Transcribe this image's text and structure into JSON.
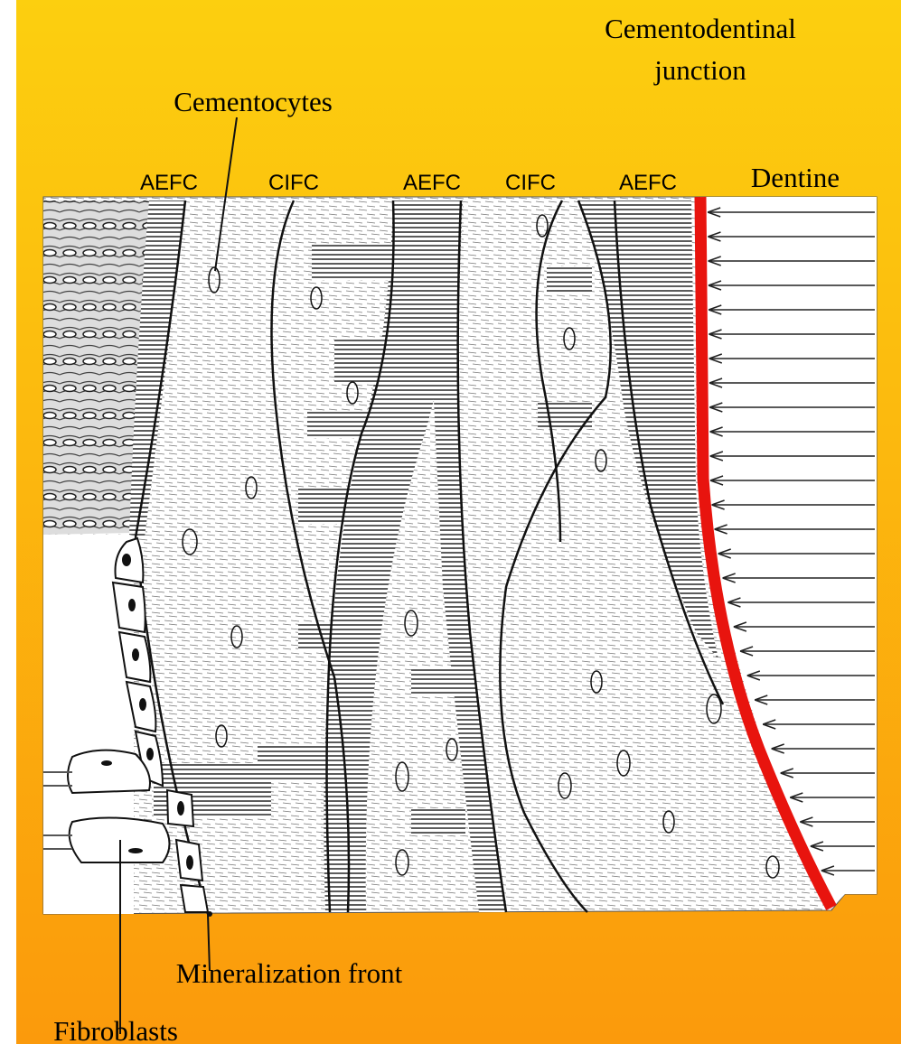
{
  "labels": {
    "layers": [
      "AEFC",
      "CIFC",
      "AEFC",
      "CIFC",
      "AEFC"
    ],
    "dentine": "Dentine",
    "cementocytes": "Cementocytes",
    "cementodentinal_junction": [
      "Cementodentinal",
      "junction"
    ],
    "mineralization_front": "Mineralization front",
    "fibroblasts": "Fibroblasts"
  }
}
